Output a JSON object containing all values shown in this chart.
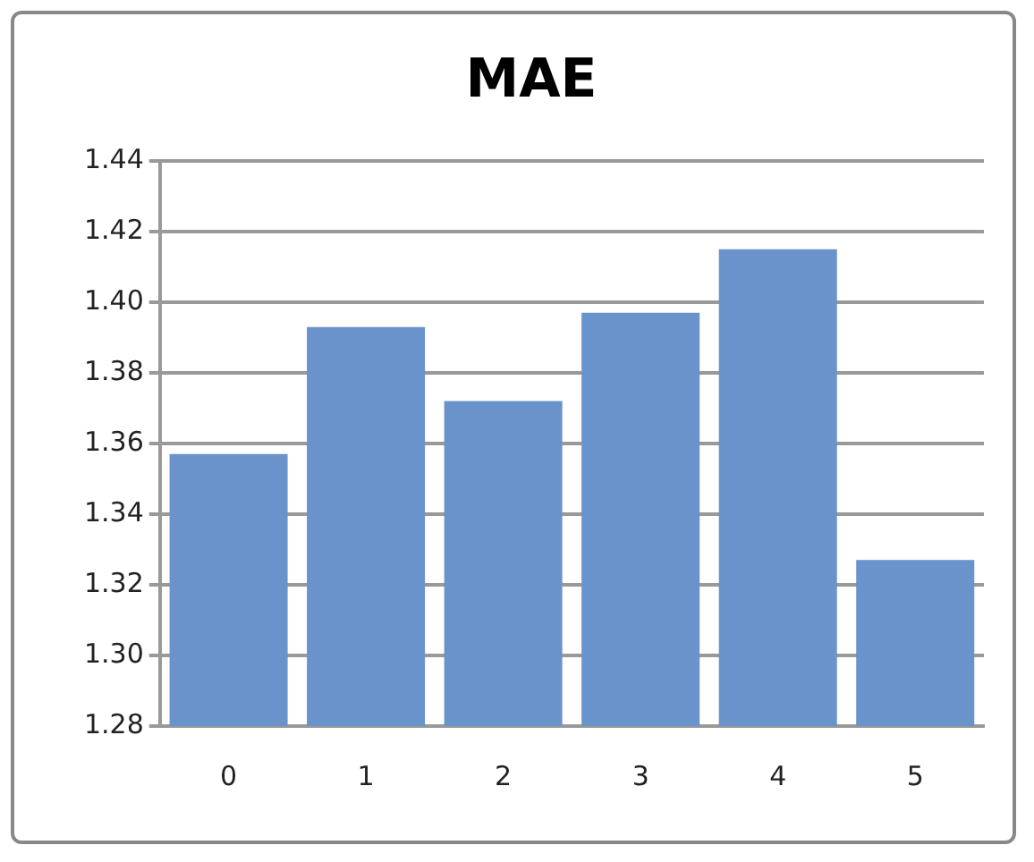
{
  "chart_data": {
    "type": "bar",
    "title": "MAE",
    "categories": [
      "0",
      "1",
      "2",
      "3",
      "4",
      "5"
    ],
    "values": [
      1.357,
      1.393,
      1.372,
      1.397,
      1.415,
      1.327
    ],
    "color": "#6a93cc",
    "ylim": [
      1.28,
      1.44
    ],
    "yticks": [
      {
        "value": 1.28,
        "label": "1.28"
      },
      {
        "value": 1.3,
        "label": "1.30"
      },
      {
        "value": 1.32,
        "label": "1.32"
      },
      {
        "value": 1.34,
        "label": "1.34"
      },
      {
        "value": 1.36,
        "label": "1.36"
      },
      {
        "value": 1.38,
        "label": "1.38"
      },
      {
        "value": 1.4,
        "label": "1.40"
      },
      {
        "value": 1.42,
        "label": "1.42"
      },
      {
        "value": 1.44,
        "label": "1.44"
      }
    ],
    "grid": "y",
    "legend": false
  }
}
